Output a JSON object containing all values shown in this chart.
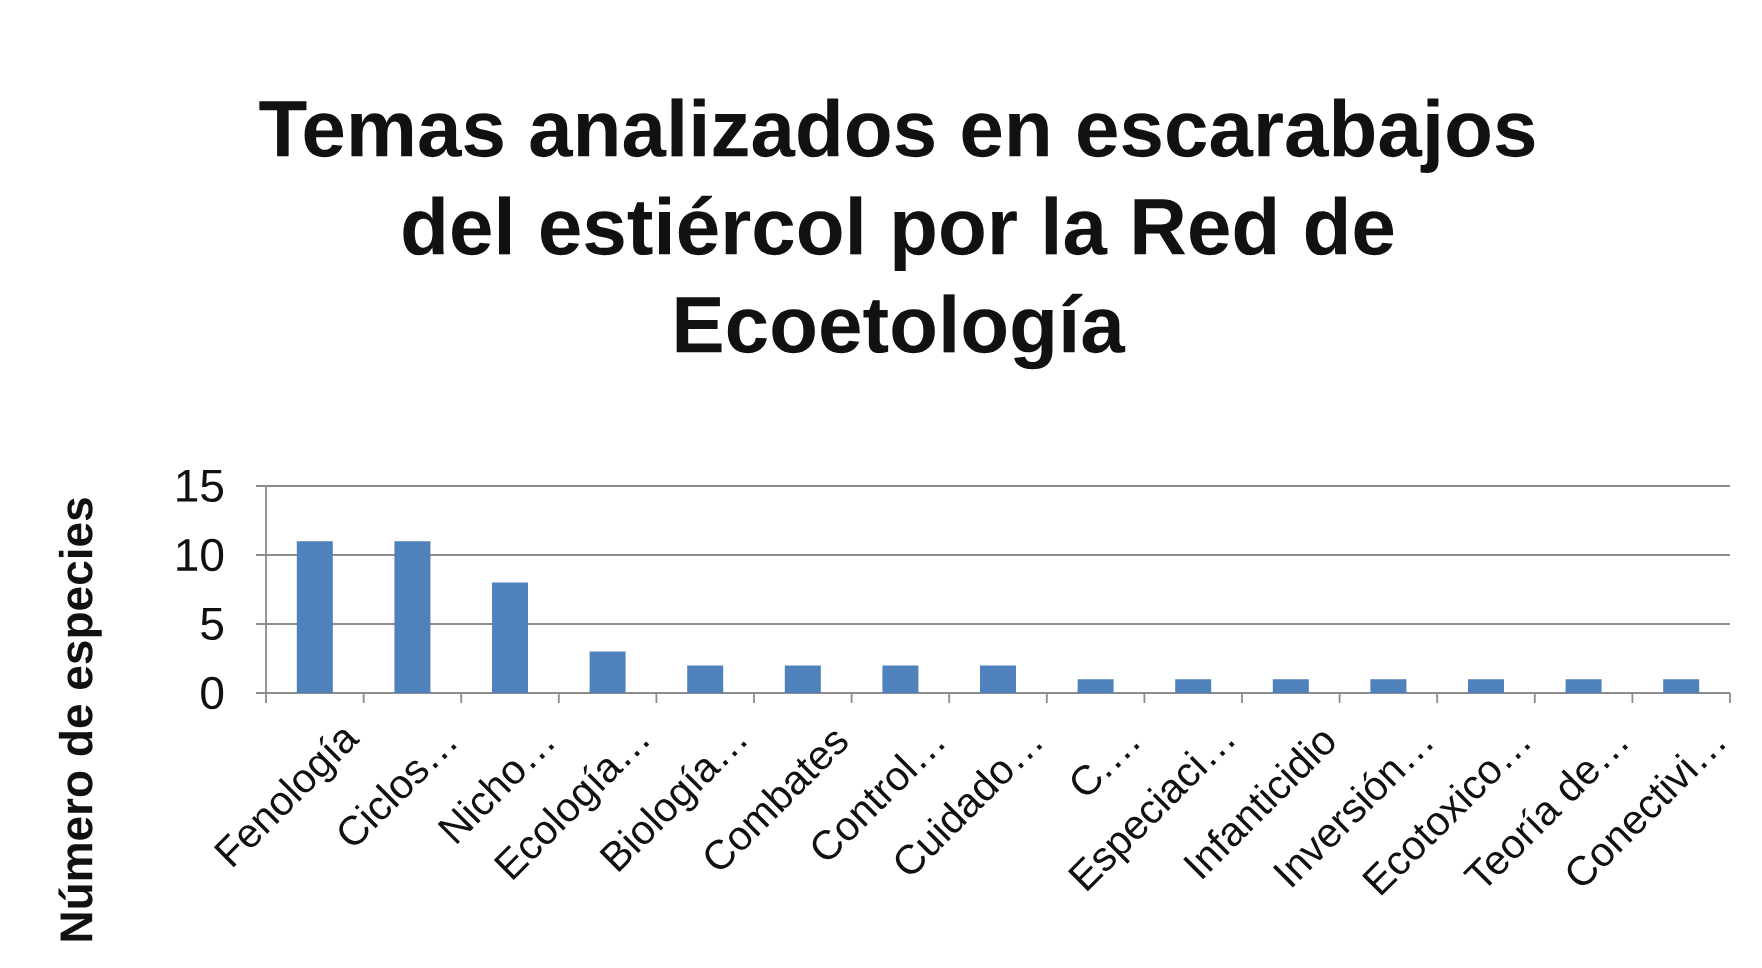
{
  "chart_data": {
    "type": "bar",
    "title": "Temas analizados en escarabajos del estiércol por la Red de Ecoetología",
    "ylabel": "Número de especies",
    "categories": [
      "Fenología",
      "Ciclos…",
      "Nicho…",
      "Ecología…",
      "Biología…",
      "Combates",
      "Control…",
      "Cuidado…",
      "C.…",
      "Especiaci…",
      "Infanticidio",
      "Inversión…",
      "Ecotoxico…",
      "Teoría de…",
      "Conectivi…"
    ],
    "values": [
      11,
      11,
      8,
      3,
      2,
      2,
      2,
      2,
      1,
      1,
      1,
      1,
      1,
      1,
      1
    ],
    "color": "#4f81bd",
    "ylim": [
      0,
      15
    ],
    "yticks": [
      0,
      5,
      10,
      15
    ],
    "grid": "y"
  }
}
